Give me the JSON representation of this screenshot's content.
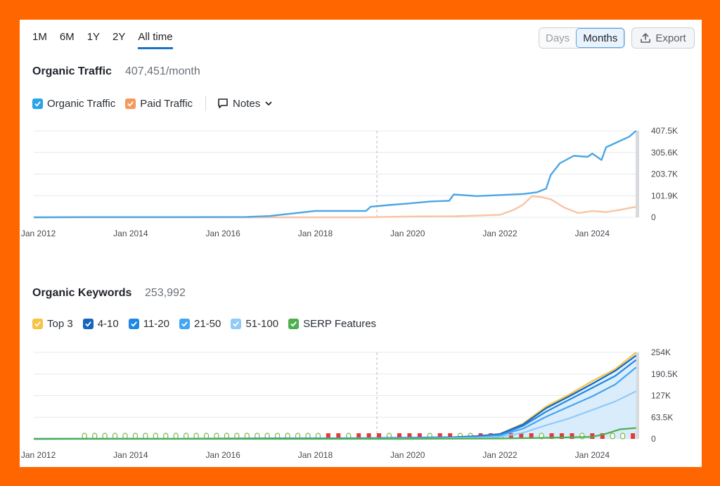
{
  "toolbar": {
    "ranges": [
      "1M",
      "6M",
      "1Y",
      "2Y",
      "All time"
    ],
    "active_range": "All time",
    "days_label": "Days",
    "months_label": "Months",
    "export_label": "Export"
  },
  "traffic": {
    "title": "Organic Traffic",
    "value": "407,451/month",
    "legend": [
      {
        "label": "Organic Traffic",
        "color": "#2aa3e8"
      },
      {
        "label": "Paid Traffic",
        "color": "#f59a5b"
      }
    ],
    "notes_label": "Notes"
  },
  "keywords": {
    "title": "Organic Keywords",
    "value": "253,992",
    "legend": [
      {
        "label": "Top 3",
        "color": "#f6c343"
      },
      {
        "label": "4-10",
        "color": "#1565c0"
      },
      {
        "label": "11-20",
        "color": "#1e88e5"
      },
      {
        "label": "21-50",
        "color": "#42a5f5"
      },
      {
        "label": "51-100",
        "color": "#90caf9"
      },
      {
        "label": "SERP Features",
        "color": "#4caf50"
      }
    ]
  },
  "chart_data": [
    {
      "type": "line",
      "x_ticks": [
        "Jan 2012",
        "Jan 2014",
        "Jan 2016",
        "Jan 2018",
        "Jan 2020",
        "Jan 2022",
        "Jan 2024"
      ],
      "y_ticks": [
        "407.5K",
        "305.6K",
        "203.7K",
        "101.9K",
        "0"
      ],
      "ylim": [
        0,
        407500
      ],
      "xlim": [
        2011.9,
        2025.0
      ],
      "grid": true,
      "series": [
        {
          "name": "Organic Traffic",
          "color": "#4aa6e6",
          "x": [
            2011.9,
            2013,
            2015,
            2016.5,
            2017,
            2017.5,
            2018,
            2018.5,
            2019.1,
            2019.2,
            2019.6,
            2020,
            2020.5,
            2020.9,
            2021,
            2021.5,
            2022,
            2022.5,
            2022.8,
            2023,
            2023.1,
            2023.3,
            2023.6,
            2023.9,
            2024.0,
            2024.2,
            2024.3,
            2024.5,
            2024.8,
            2024.95
          ],
          "y": [
            0,
            1000,
            1000,
            2000,
            6000,
            18000,
            30000,
            30000,
            30000,
            50000,
            58000,
            65000,
            75000,
            78000,
            108000,
            100000,
            105000,
            110000,
            118000,
            135000,
            200000,
            255000,
            290000,
            285000,
            300000,
            270000,
            330000,
            350000,
            380000,
            407451
          ]
        },
        {
          "name": "Paid Traffic",
          "color": "#f8c4a4",
          "x": [
            2011.9,
            2019,
            2020,
            2021,
            2021.5,
            2022,
            2022.3,
            2022.5,
            2022.7,
            2022.9,
            2023.1,
            2023.4,
            2023.7,
            2024,
            2024.3,
            2024.6,
            2024.95
          ],
          "y": [
            0,
            0,
            4000,
            5000,
            8000,
            12000,
            35000,
            60000,
            100000,
            95000,
            85000,
            45000,
            20000,
            30000,
            25000,
            35000,
            50000
          ]
        }
      ]
    },
    {
      "type": "area",
      "x_ticks": [
        "Jan 2012",
        "Jan 2014",
        "Jan 2016",
        "Jan 2018",
        "Jan 2020",
        "Jan 2022",
        "Jan 2024"
      ],
      "y_ticks": [
        "254K",
        "190.5K",
        "127K",
        "63.5K",
        "0"
      ],
      "ylim": [
        0,
        254000
      ],
      "xlim": [
        2011.9,
        2025.0
      ],
      "grid": true,
      "series": [
        {
          "name": "Top 3",
          "color": "#f6c343",
          "x": [
            2011.9,
            2019,
            2021,
            2021.5,
            2022,
            2022.5,
            2023,
            2023.5,
            2024,
            2024.5,
            2024.95
          ],
          "y": [
            0,
            2000,
            5000,
            8000,
            15000,
            45000,
            95000,
            130000,
            170000,
            205000,
            253992
          ]
        },
        {
          "name": "4-10",
          "color": "#1565c0",
          "x": [
            2011.9,
            2019,
            2021,
            2021.5,
            2022,
            2022.5,
            2023,
            2023.5,
            2024,
            2024.5,
            2024.95
          ],
          "y": [
            0,
            2000,
            5000,
            8000,
            14000,
            42000,
            90000,
            125000,
            162000,
            200000,
            245000
          ]
        },
        {
          "name": "11-20",
          "color": "#1e88e5",
          "x": [
            2011.9,
            2019,
            2021,
            2021.5,
            2022,
            2022.5,
            2023,
            2023.5,
            2024,
            2024.5,
            2024.95
          ],
          "y": [
            0,
            1500,
            4000,
            6000,
            12000,
            38000,
            80000,
            115000,
            150000,
            185000,
            232000
          ]
        },
        {
          "name": "21-50",
          "color": "#42a5f5",
          "x": [
            2011.9,
            2019,
            2021,
            2021.5,
            2022,
            2022.5,
            2023,
            2023.5,
            2024,
            2024.5,
            2024.95
          ],
          "y": [
            0,
            1000,
            3000,
            5000,
            10000,
            30000,
            65000,
            95000,
            125000,
            160000,
            210000
          ]
        },
        {
          "name": "51-100",
          "color": "#90caf9",
          "x": [
            2011.9,
            2019,
            2021,
            2021.5,
            2022,
            2022.5,
            2023,
            2023.5,
            2024,
            2024.5,
            2024.95
          ],
          "y": [
            0,
            500,
            2000,
            3000,
            6000,
            18000,
            40000,
            60000,
            85000,
            110000,
            140000
          ]
        },
        {
          "name": "SERP Features",
          "color": "#4caf50",
          "x": [
            2011.9,
            2020,
            2022,
            2023,
            2024,
            2024.3,
            2024.6,
            2024.95
          ],
          "y": [
            0,
            0,
            1000,
            3000,
            6000,
            15000,
            28000,
            32000
          ]
        }
      ]
    }
  ]
}
